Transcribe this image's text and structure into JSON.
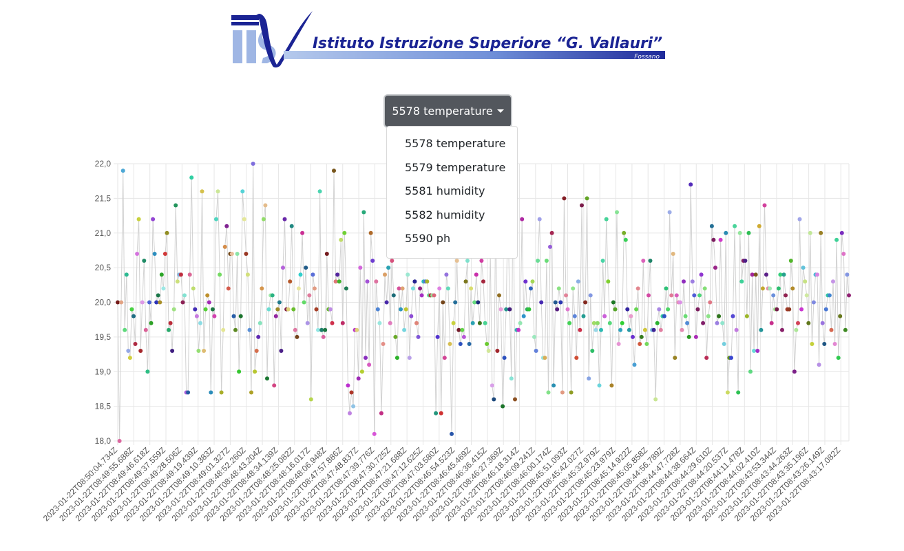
{
  "logo": {
    "text": "Istituto Istruzione Superiore “G. Vallauri”",
    "subtext": "Fossano",
    "mark": "IIS"
  },
  "dropdown": {
    "selected": "5578 temperature",
    "options": [
      "5578 temperature",
      "5579 temperature",
      "5581 humidity",
      "5582 humidity",
      "5590 ph"
    ]
  },
  "chart_data": {
    "type": "scatter",
    "connect_points": true,
    "ylim": [
      18.0,
      22.0
    ],
    "y_ticks": [
      "22,0",
      "21,5",
      "21,0",
      "20,5",
      "20,0",
      "19,5",
      "19,0",
      "18,5",
      "18,0"
    ],
    "x_tick_labels": [
      "2023-01-22T08:50:04.734Z",
      "2023-01-22T08:49:55.688Z",
      "2023-01-22T08:49:46.618Z",
      "2023-01-22T08:49:37.559Z",
      "2023-01-22T08:49:28.506Z",
      "2023-01-22T08:49:19.439Z",
      "2023-01-22T08:49:10.383Z",
      "2023-01-22T08:49:01.327Z",
      "2023-01-22T08:48:52.260Z",
      "2023-01-22T08:48:43.204Z",
      "2023-01-22T08:48:34.139Z",
      "2023-01-22T08:48:25.082Z",
      "2023-01-22T08:48:16.017Z",
      "2023-01-22T08:48:06.948Z",
      "2023-01-22T08:47:57.886Z",
      "2023-01-22T08:47:48.837Z",
      "2023-01-22T08:47:39.776Z",
      "2023-01-22T08:47:30.725Z",
      "2023-01-22T08:47:21.688Z",
      "2023-01-22T08:47:12.625Z",
      "2023-01-22T08:47:03.580Z",
      "2023-01-22T08:46:54.523Z",
      "2023-01-22T08:46:45.469Z",
      "2023-01-22T08:46:36.415Z",
      "2023-01-22T08:46:27.369Z",
      "2023-01-22T08:46:18.314Z",
      "2023-01-22T08:46:09.241Z",
      "2023-01-22T08:46:00.174Z",
      "2023-01-22T08:45:51.093Z",
      "2023-01-22T08:45:42.027Z",
      "2023-01-22T08:45:32.979Z",
      "2023-01-22T08:45:23.979Z",
      "2023-01-22T08:45:14.922Z",
      "2023-01-22T08:45:05.858Z",
      "2023-01-22T08:44:56.789Z",
      "2023-01-22T08:44:47.728Z",
      "2023-01-22T08:44:38.664Z",
      "2023-01-22T08:44:29.610Z",
      "2023-01-22T08:44:20.537Z",
      "2023-01-22T08:44:11.478Z",
      "2023-01-22T08:44:02.410Z",
      "2023-01-22T08:43:53.344Z",
      "2023-01-22T08:43:44.263Z",
      "2023-01-22T08:43:35.196Z",
      "2023-01-22T08:43:26.149Z",
      "2023-01-22T08:43:17.082Z"
    ],
    "values": [
      20.0,
      18.0,
      20.0,
      21.9,
      19.6,
      20.4,
      19.3,
      19.2,
      19.9,
      19.8,
      19.4,
      20.7,
      21.2,
      19.3,
      20.0,
      20.6,
      19.6,
      19.0,
      20.0,
      19.7,
      21.2,
      20.7,
      20.0,
      20.1,
      20.0,
      20.4,
      20.2,
      20.7,
      21.0,
      19.6,
      19.7,
      19.3,
      19.9,
      21.4,
      20.3,
      20.4,
      20.4,
      20.0,
      20.1,
      18.7,
      18.7,
      20.4,
      21.8,
      20.2,
      19.9,
      19.8,
      19.3,
      19.7,
      21.6,
      19.3,
      19.9,
      20.1,
      20.0,
      18.7,
      19.9,
      19.8,
      21.2,
      21.6,
      20.4,
      18.7,
      19.6,
      20.8,
      21.1,
      20.2,
      20.7,
      20.7,
      19.8,
      19.6,
      20.7,
      19.0,
      19.8,
      21.6,
      21.2,
      20.7,
      20.4,
      19.6,
      18.7,
      22.0,
      19.0,
      19.3,
      19.5,
      19.7,
      20.2,
      21.2,
      21.4,
      18.9,
      19.9,
      20.1,
      20.1,
      18.8,
      19.8,
      19.9,
      20.0,
      19.3,
      20.5,
      21.2,
      19.9,
      19.9,
      20.3,
      21.1,
      19.9,
      19.6,
      19.5,
      20.2,
      20.4,
      21.0,
      20.0,
      20.5,
      19.7,
      20.1,
      18.6,
      20.4,
      20.2,
      19.9,
      19.6,
      21.6,
      19.6,
      19.5,
      19.6,
      20.7,
      19.9,
      19.9,
      19.7,
      21.9,
      20.3,
      20.4,
      20.3,
      20.9,
      19.7,
      21.0,
      20.2,
      18.8,
      18.4,
      18.7,
      18.5,
      19.6,
      19.6,
      18.9,
      20.5,
      19.0,
      21.3,
      19.2,
      20.3,
      19.1,
      21.0,
      20.6,
      18.1,
      20.3,
      19.9,
      19.7,
      18.4,
      19.4,
      20.4,
      20.0,
      20.5,
      19.7,
      20.6,
      20.1,
      19.5,
      19.2,
      20.2,
      19.9,
      20.2,
      19.6,
      19.9,
      20.4,
      19.2,
      19.8,
      20.2,
      20.3,
      19.7,
      19.5,
      20.2,
      20.1,
      20.3,
      20.3,
      20.3,
      20.1,
      20.1,
      20.1,
      20.1,
      18.4,
      19.5,
      20.2,
      18.4,
      20.0,
      19.2,
      20.4,
      20.2,
      19.4,
      18.1,
      19.7,
      20.0,
      20.6,
      19.6,
      19.4,
      19.6,
      19.5,
      20.3,
      20.6,
      19.4,
      20.2,
      19.7,
      20.0,
      20.4,
      20.0,
      19.7,
      20.6,
      20.3,
      19.7,
      19.4,
      19.3,
      20.7,
      18.8,
      18.6,
      21.3,
      19.3,
      20.1,
      19.9,
      18.5,
      19.2,
      19.9,
      21.4,
      19.9,
      18.9,
      21.9,
      18.6,
      19.6,
      19.6,
      19.7,
      21.2,
      19.8,
      20.3,
      19.9,
      19.9,
      20.2,
      20.3,
      19.5,
      19.3,
      20.6,
      21.2,
      20.0,
      19.2,
      19.2,
      20.6,
      18.7,
      20.8,
      21.0,
      18.8,
      20.0,
      19.9,
      20.2,
      20.0,
      18.7,
      21.5,
      20.1,
      19.9,
      19.7,
      18.7,
      20.2,
      19.8,
      19.2,
      20.3,
      19.6,
      21.4,
      19.8,
      20.0,
      21.5,
      18.9,
      20.1,
      19.3,
      19.7,
      19.6,
      19.7,
      18.8,
      19.6,
      20.6,
      19.8,
      21.2,
      20.3,
      19.7,
      18.8,
      20.0,
      19.9,
      21.3,
      19.4,
      19.6,
      19.7,
      21.0,
      20.9,
      19.9,
      19.6,
      19.8,
      19.5,
      19.1,
      19.9,
      20.2,
      19.4,
      19.5,
      20.6,
      19.6,
      19.4,
      20.1,
      20.6,
      19.6,
      19.6,
      18.6,
      19.7,
      19.9,
      19.6,
      19.8,
      19.8,
      20.2,
      19.9,
      21.3,
      20.1,
      20.7,
      19.2,
      20.1,
      20.0,
      20.0,
      19.6,
      20.3,
      19.8,
      19.7,
      19.5,
      21.7,
      20.3,
      20.1,
      19.5,
      19.9,
      20.1,
      20.4,
      19.7,
      20.2,
      19.2,
      19.8,
      20.0,
      21.1,
      20.9,
      20.5,
      19.7,
      19.8,
      20.9,
      19.7,
      19.4,
      21.0,
      18.7,
      19.2,
      19.2,
      19.8,
      21.1,
      19.6,
      18.7,
      21.0,
      20.3,
      20.6,
      20.6,
      19.8,
      21.0,
      19.0,
      20.4,
      19.3,
      20.4,
      19.3,
      21.1,
      19.6,
      20.2,
      21.4,
      20.4,
      20.2,
      20.2,
      19.7,
      20.1,
      19.9,
      19.9,
      20.2,
      20.4,
      19.6,
      20.4,
      20.1,
      19.9,
      19.9,
      20.6,
      20.2,
      19.0,
      19.6,
      19.7,
      21.2,
      19.9,
      20.5,
      20.3,
      20.1,
      19.7,
      21.0,
      19.4,
      20.0,
      20.4,
      20.4,
      19.1,
      21.0,
      19.7,
      19.4,
      19.9,
      20.1,
      20.1,
      19.6,
      20.3,
      19.4,
      20.9,
      19.2,
      19.8,
      21.0,
      20.7,
      19.6,
      20.4,
      20.1
    ]
  }
}
